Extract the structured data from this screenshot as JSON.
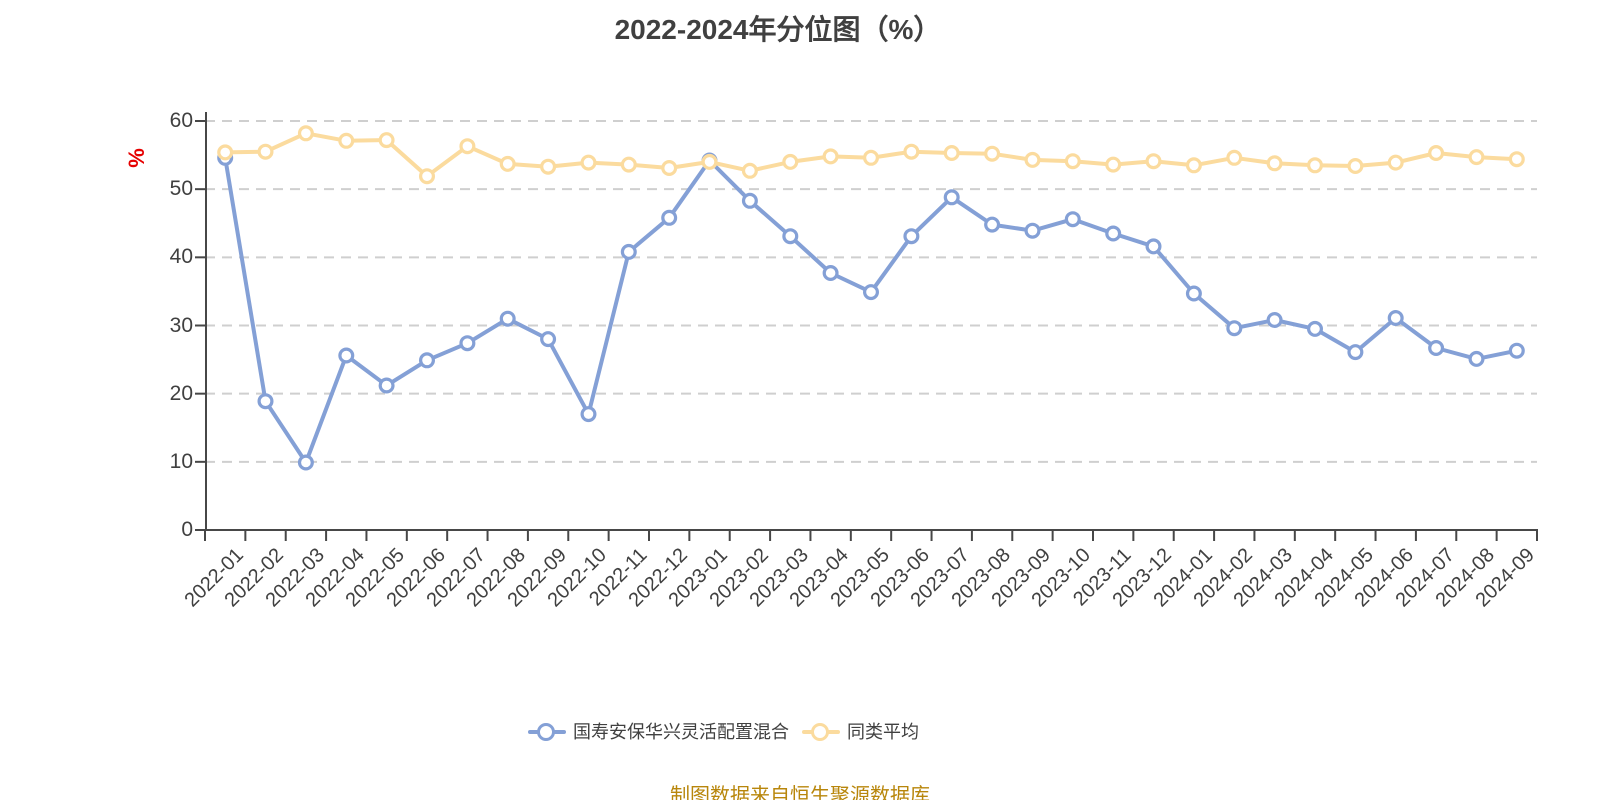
{
  "title": "2022-2024年分位图（%）",
  "source_note": "制图数据来自恒生聚源数据库",
  "y_axis": {
    "unit_label": "%",
    "ticks": [
      0,
      10,
      20,
      30,
      40,
      50,
      60
    ]
  },
  "colors": {
    "fund_series": "#84a0d6",
    "peer_series": "#fbdb9e",
    "text": "#404040",
    "axis": "#474747",
    "grid": "#cfcfcf",
    "unit_label": "#e60000",
    "source_note": "#b8860b",
    "marker_fill": "#ffffff"
  },
  "legend": {
    "items": [
      {
        "label": "国寿安保华兴灵活配置混合"
      },
      {
        "label": "同类平均"
      }
    ]
  },
  "chart_data": {
    "type": "line",
    "title": "2022-2024年分位图（%）",
    "xlabel": "",
    "ylabel": "%",
    "ylim": [
      0,
      60
    ],
    "y_ticks": [
      0,
      10,
      20,
      30,
      40,
      50,
      60
    ],
    "grid": true,
    "grid_style": "dashed",
    "legend_position": "bottom",
    "categories": [
      "2022-01",
      "2022-02",
      "2022-03",
      "2022-04",
      "2022-05",
      "2022-06",
      "2022-07",
      "2022-08",
      "2022-09",
      "2022-10",
      "2022-11",
      "2022-12",
      "2023-01",
      "2023-02",
      "2023-03",
      "2023-04",
      "2023-05",
      "2023-06",
      "2023-07",
      "2023-08",
      "2023-09",
      "2023-10",
      "2023-11",
      "2023-12",
      "2024-01",
      "2024-02",
      "2024-03",
      "2024-04",
      "2024-05",
      "2024-06",
      "2024-07",
      "2024-08",
      "2024-09"
    ],
    "series": [
      {
        "name": "国寿安保华兴灵活配置混合",
        "color": "#84a0d6",
        "values": [
          54.6,
          18.9,
          9.9,
          25.6,
          21.2,
          24.9,
          27.4,
          31.0,
          28.0,
          17.0,
          40.8,
          45.8,
          54.2,
          48.3,
          43.1,
          37.7,
          34.9,
          43.1,
          48.8,
          44.8,
          43.9,
          45.6,
          43.5,
          41.6,
          34.7,
          29.6,
          30.8,
          29.5,
          26.1,
          31.1,
          26.7,
          25.1,
          26.3
        ]
      },
      {
        "name": "同类平均",
        "color": "#fbdb9e",
        "values": [
          55.4,
          55.5,
          58.2,
          57.1,
          57.2,
          51.9,
          56.3,
          53.7,
          53.3,
          53.9,
          53.6,
          53.1,
          54.0,
          52.7,
          54.0,
          54.8,
          54.6,
          55.5,
          55.3,
          55.2,
          54.3,
          54.1,
          53.6,
          54.1,
          53.5,
          54.6,
          53.8,
          53.5,
          53.4,
          53.9,
          55.3,
          54.7,
          54.4
        ]
      }
    ]
  }
}
